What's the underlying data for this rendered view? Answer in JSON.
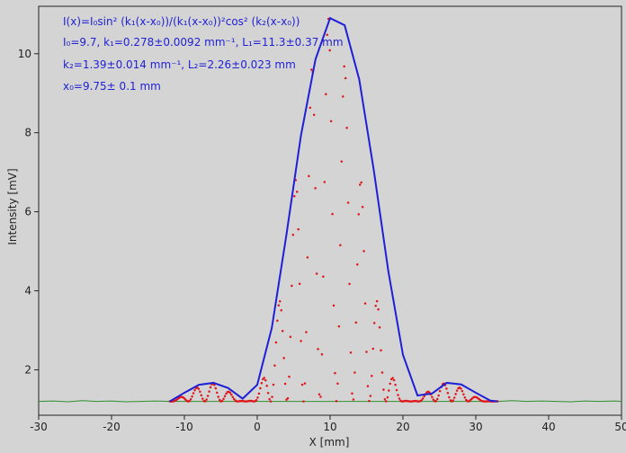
{
  "chart_data": {
    "type": "scatter",
    "xlabel": "X [mm]",
    "ylabel": "Intensity [mV]",
    "xlim": [
      -30,
      50
    ],
    "ylim": [
      0.85,
      11.2
    ],
    "x_ticks": [
      -30,
      -20,
      -10,
      0,
      10,
      20,
      30,
      40,
      50
    ],
    "y_ticks": [
      2,
      4,
      6,
      8,
      10
    ],
    "x_tick_labels": [
      "-30",
      "-20",
      "-10",
      "0",
      "10",
      "20",
      "30",
      "40",
      "50"
    ],
    "y_tick_labels": [
      "2",
      "4",
      "6",
      "8",
      "10"
    ],
    "grid": false,
    "colors": {
      "background": "#d4d4d4",
      "baseline_green": "#2f8f2f",
      "data_red": "#e0151a",
      "fit_blue": "#1f1fd6",
      "axis": "#222222"
    },
    "fit_formula": {
      "line1": "I(x)=I₀sin² (k₁(x-x₀))/(k₁(x-x₀))²cos² (k₂(x-x₀))",
      "line2": "I₀=9.7,  k₁=0.278±0.0092 mm⁻¹,   L₁=11.3±0.37 mm",
      "line3": "k₂=1.39±0.014 mm⁻¹,   L₂=2.26±0.023 mm",
      "line4": "x₀=9.75±  0.1 mm"
    },
    "model": {
      "I0": 9.7,
      "k1": 0.278,
      "k2": 1.39,
      "x0": 9.75,
      "baseline": 1.2
    },
    "series": [
      {
        "kind": "baseline",
        "x": [
          -30,
          -28,
          -26,
          -24,
          -22,
          -20,
          -18,
          -16,
          -14,
          -12,
          33,
          35,
          37,
          39,
          41,
          43,
          45,
          47,
          49,
          50
        ],
        "y": [
          1.2,
          1.21,
          1.19,
          1.22,
          1.2,
          1.21,
          1.19,
          1.2,
          1.21,
          1.2,
          1.2,
          1.22,
          1.2,
          1.21,
          1.2,
          1.19,
          1.21,
          1.2,
          1.21,
          1.2
        ]
      },
      {
        "kind": "envelope-fit",
        "x": [
          -12,
          -10,
          -8,
          -6,
          -4,
          -2,
          0,
          2,
          4,
          6,
          8,
          10,
          12,
          14,
          16,
          18,
          20,
          22,
          24,
          26,
          28,
          30,
          32,
          33
        ],
        "y": [
          1.2,
          1.42,
          1.62,
          1.67,
          1.54,
          1.27,
          1.62,
          3.06,
          5.41,
          7.93,
          9.86,
          10.9,
          10.72,
          9.35,
          7.05,
          4.49,
          2.38,
          1.35,
          1.4,
          1.67,
          1.63,
          1.42,
          1.22,
          1.2
        ]
      }
    ]
  }
}
